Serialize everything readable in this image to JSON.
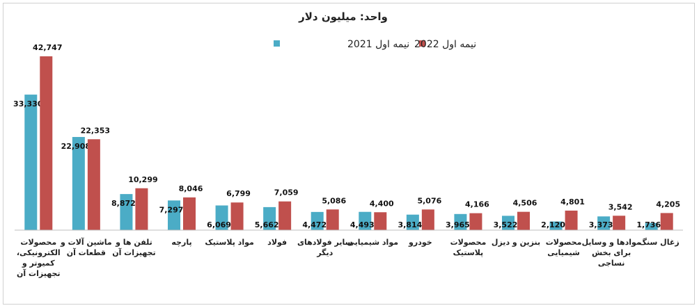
{
  "chart_data": {
    "type": "bar",
    "title": "واحد: میلیون دلار",
    "xlabel": "",
    "ylabel": "",
    "ylim": [
      0,
      45000
    ],
    "grid": false,
    "legend_position": "top-center",
    "categories": [
      [
        "محصولات",
        "الکترونیکی،",
        "کمیوتر و",
        "تجهیزات آن"
      ],
      [
        "ماشین آلات و",
        "قطعات آن"
      ],
      [
        "تلفن ها و",
        "تجهیزات آن"
      ],
      [
        "پارچه"
      ],
      [
        "مواد پلاستیک"
      ],
      [
        "فولاد"
      ],
      [
        "سایر فولادهای",
        "دیگر"
      ],
      [
        "مواد شیمیایی"
      ],
      [
        "خودرو"
      ],
      [
        "محصولات",
        "پلاستیک"
      ],
      [
        "بنزین و دیزل"
      ],
      [
        "محصولات",
        "شیمیایی"
      ],
      [
        "موادها و وسایل",
        "برای بخش",
        "نساجی"
      ],
      [
        "زغال سنگ"
      ]
    ],
    "series": [
      {
        "name": "نیمه اول 2021",
        "color": "#4bacc6",
        "values": [
          33330,
          22908,
          8872,
          7297,
          6069,
          5662,
          4472,
          4493,
          3814,
          3965,
          3522,
          2120,
          3373,
          1736
        ],
        "labels": [
          "33,330",
          "22,908",
          "8,872",
          "7,297",
          "6,069",
          "5,662",
          "4,472",
          "4,493",
          "3,814",
          "3,965",
          "3,522",
          "2,120",
          "3,373",
          "1,736"
        ]
      },
      {
        "name": "نیمه اول 2022",
        "color": "#c0504d",
        "values": [
          42747,
          22353,
          10299,
          8046,
          6799,
          7059,
          5086,
          4400,
          5076,
          4166,
          4506,
          4801,
          3542,
          4205
        ],
        "labels": [
          "42,747",
          "22,353",
          "10,299",
          "8,046",
          "6,799",
          "7,059",
          "5,086",
          "4,400",
          "5,076",
          "4,166",
          "4,506",
          "4,801",
          "3,542",
          "4,205"
        ]
      }
    ]
  }
}
